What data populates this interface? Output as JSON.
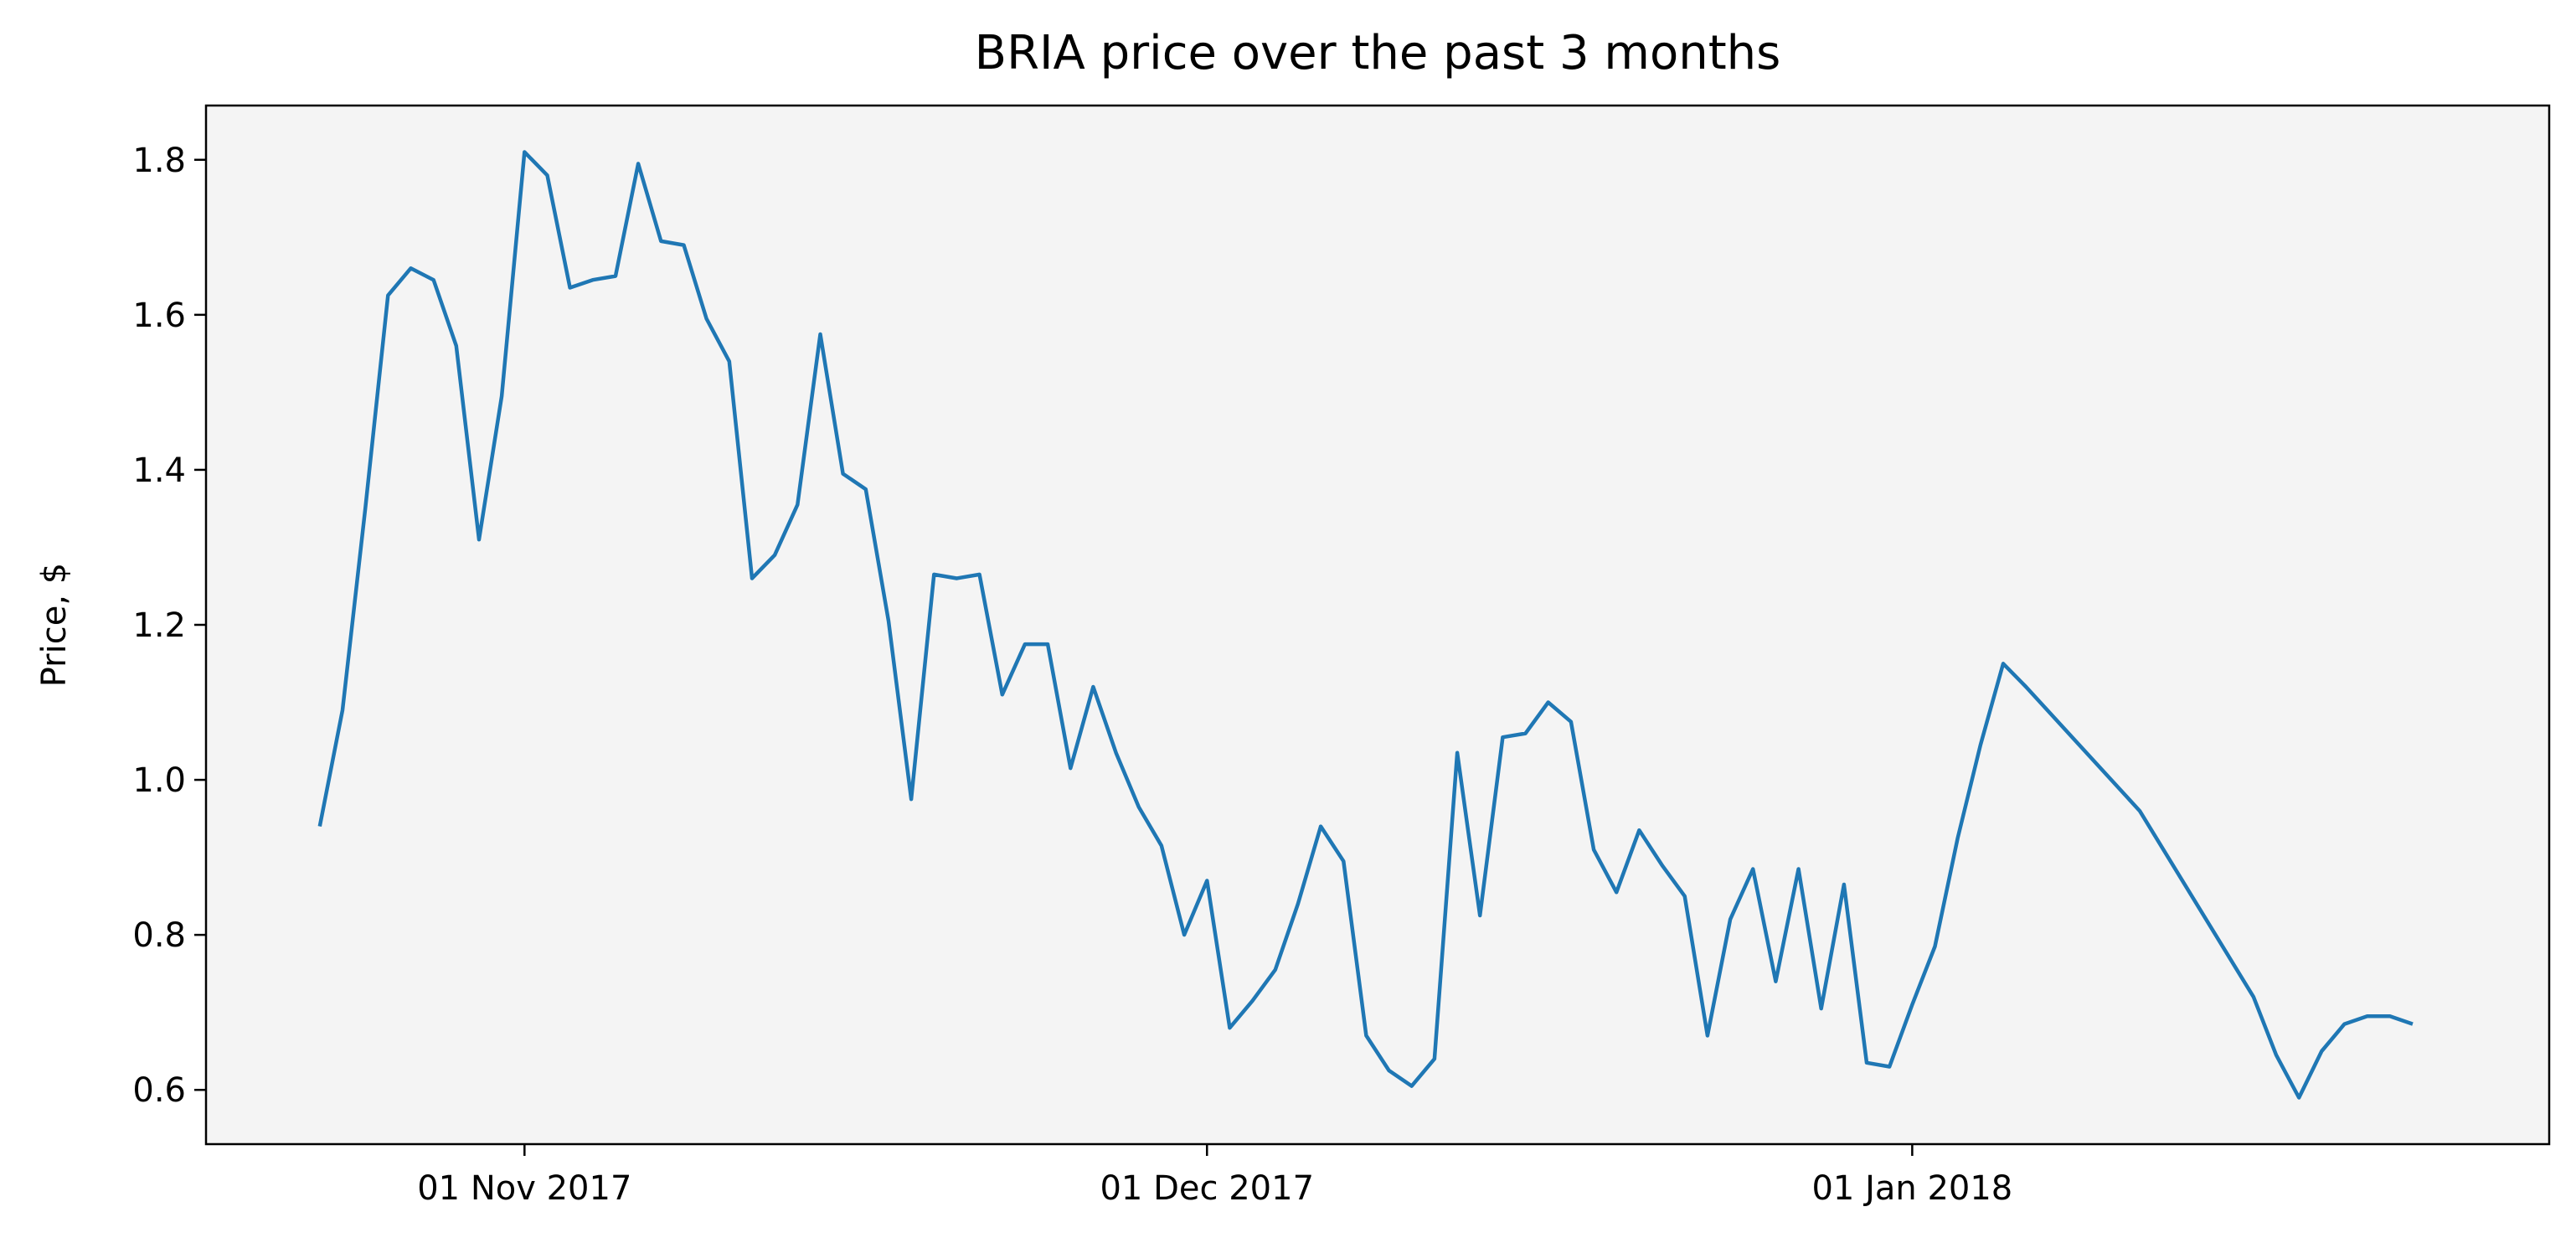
{
  "chart_data": {
    "type": "line",
    "title": "BRIA price over the past 3 months",
    "xlabel": "",
    "ylabel": "Price, $",
    "ylim": [
      0.53,
      1.87
    ],
    "xlim": [
      "2017-10-18",
      "2018-01-29"
    ],
    "grid": false,
    "background_color": "#f4f4f4",
    "line_color": "#1f77b4",
    "yticks": [
      0.6,
      0.8,
      1.0,
      1.2,
      1.4,
      1.6,
      1.8
    ],
    "ytick_labels": [
      "0.6",
      "0.8",
      "1.0",
      "1.2",
      "1.4",
      "1.6",
      "1.8"
    ],
    "xticks": [
      "2017-11-01",
      "2017-12-01",
      "2018-01-01"
    ],
    "xtick_labels": [
      "01 Nov 2017",
      "01 Dec 2017",
      "01 Jan 2018"
    ],
    "series": [
      {
        "x": [
          "2017-10-23",
          "2017-10-24",
          "2017-10-25",
          "2017-10-26",
          "2017-10-27",
          "2017-10-28",
          "2017-10-29",
          "2017-10-30",
          "2017-10-31",
          "2017-11-01",
          "2017-11-02",
          "2017-11-03",
          "2017-11-04",
          "2017-11-05",
          "2017-11-06",
          "2017-11-07",
          "2017-11-08",
          "2017-11-09",
          "2017-11-10",
          "2017-11-11",
          "2017-11-12",
          "2017-11-13",
          "2017-11-14",
          "2017-11-15",
          "2017-11-16",
          "2017-11-17",
          "2017-11-18",
          "2017-11-19",
          "2017-11-20",
          "2017-11-21",
          "2017-11-22",
          "2017-11-23",
          "2017-11-24",
          "2017-11-25",
          "2017-11-26",
          "2017-11-27",
          "2017-11-28",
          "2017-11-29",
          "2017-11-30",
          "2017-12-01",
          "2017-12-02",
          "2017-12-03",
          "2017-12-04",
          "2017-12-05",
          "2017-12-06",
          "2017-12-07",
          "2017-12-08",
          "2017-12-09",
          "2017-12-10",
          "2017-12-11",
          "2017-12-12",
          "2017-12-13",
          "2017-12-14",
          "2017-12-15",
          "2017-12-16",
          "2017-12-17",
          "2017-12-18",
          "2017-12-19",
          "2017-12-20",
          "2017-12-21",
          "2017-12-22",
          "2017-12-23",
          "2017-12-24",
          "2017-12-25",
          "2017-12-26",
          "2017-12-27",
          "2017-12-28",
          "2017-12-29",
          "2017-12-30",
          "2017-12-31",
          "2018-01-01",
          "2018-01-02",
          "2018-01-03",
          "2018-01-04",
          "2018-01-05",
          "2018-01-06",
          "2018-01-11",
          "2018-01-16",
          "2018-01-17",
          "2018-01-18",
          "2018-01-19",
          "2018-01-20",
          "2018-01-21",
          "2018-01-22",
          "2018-01-23"
        ],
        "values": [
          0.94,
          1.09,
          1.35,
          1.625,
          1.66,
          1.645,
          1.56,
          1.31,
          1.495,
          1.81,
          1.78,
          1.635,
          1.645,
          1.65,
          1.795,
          1.695,
          1.69,
          1.595,
          1.54,
          1.26,
          1.29,
          1.355,
          1.575,
          1.395,
          1.375,
          1.205,
          0.975,
          1.265,
          1.26,
          1.265,
          1.11,
          1.175,
          1.175,
          1.015,
          1.12,
          1.035,
          0.965,
          0.915,
          0.8,
          0.87,
          0.68,
          0.715,
          0.755,
          0.84,
          0.94,
          0.895,
          0.67,
          0.625,
          0.605,
          0.64,
          1.035,
          0.825,
          1.055,
          1.06,
          1.1,
          1.075,
          0.91,
          0.855,
          0.935,
          0.89,
          0.85,
          0.67,
          0.82,
          0.885,
          0.74,
          0.885,
          0.705,
          0.865,
          0.635,
          0.63,
          0.71,
          0.785,
          0.925,
          1.045,
          1.15,
          1.12,
          0.96,
          0.72,
          0.645,
          0.59,
          0.65,
          0.685,
          0.695,
          0.695,
          0.685
        ]
      }
    ]
  }
}
